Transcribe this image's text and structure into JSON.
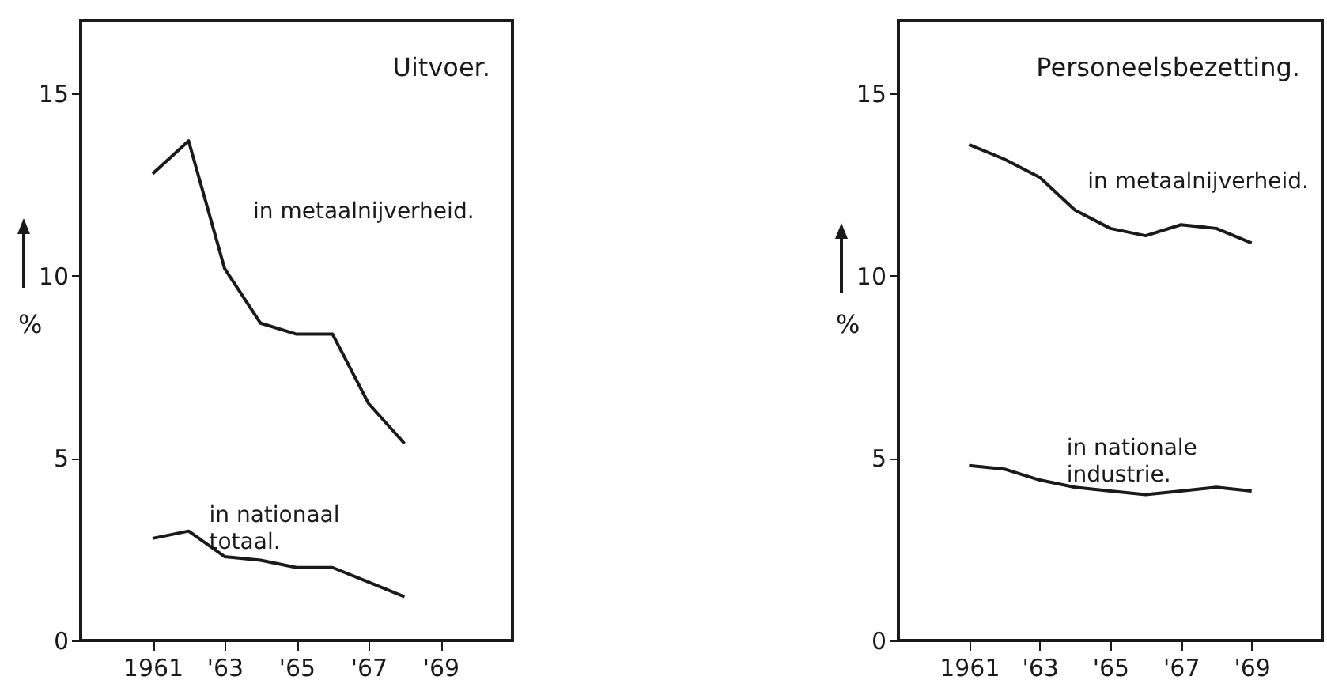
{
  "chart_data": [
    {
      "type": "line",
      "title": "Uitvoer.",
      "ylabel": "%",
      "xlim": [
        1959,
        1971
      ],
      "ylim": [
        0,
        17
      ],
      "xticks": [
        1961,
        {
          "value": 1963,
          "label": "'63"
        },
        {
          "value": 1965,
          "label": "'65"
        },
        {
          "value": 1967,
          "label": "'67"
        },
        {
          "value": 1969,
          "label": "'69"
        }
      ],
      "yticks": [
        0,
        5,
        10,
        15
      ],
      "x": [
        1961,
        1962,
        1963,
        1964,
        1965,
        1966,
        1967,
        1968
      ],
      "series": [
        {
          "name": "in metaalnijverheid.",
          "color": "#1a1a1a",
          "values": [
            12.8,
            13.7,
            10.2,
            8.7,
            8.4,
            8.4,
            6.5,
            5.4
          ]
        },
        {
          "name": "in nationaal totaal.",
          "color": "#1a1a1a",
          "values": [
            2.8,
            3.0,
            2.3,
            2.2,
            2.0,
            2.0,
            1.6,
            1.2
          ]
        }
      ]
    },
    {
      "type": "line",
      "title": "Personeelsbezetting.",
      "ylabel": "%",
      "xlim": [
        1959,
        1971
      ],
      "ylim": [
        0,
        17
      ],
      "xticks": [
        1961,
        {
          "value": 1963,
          "label": "'63"
        },
        {
          "value": 1965,
          "label": "'65"
        },
        {
          "value": 1967,
          "label": "'67"
        },
        {
          "value": 1969,
          "label": "'69"
        }
      ],
      "yticks": [
        0,
        5,
        10,
        15
      ],
      "x": [
        1961,
        1962,
        1963,
        1964,
        1965,
        1966,
        1967,
        1968,
        1969
      ],
      "series": [
        {
          "name": "in metaalnijverheid.",
          "color": "#1a1a1a",
          "values": [
            13.6,
            13.2,
            12.7,
            11.8,
            11.3,
            11.1,
            11.4,
            11.3,
            10.9
          ]
        },
        {
          "name": "in nationale industrie.",
          "color": "#1a1a1a",
          "values": [
            4.8,
            4.7,
            4.4,
            4.2,
            4.1,
            4.0,
            4.1,
            4.2,
            4.1
          ]
        }
      ]
    }
  ]
}
